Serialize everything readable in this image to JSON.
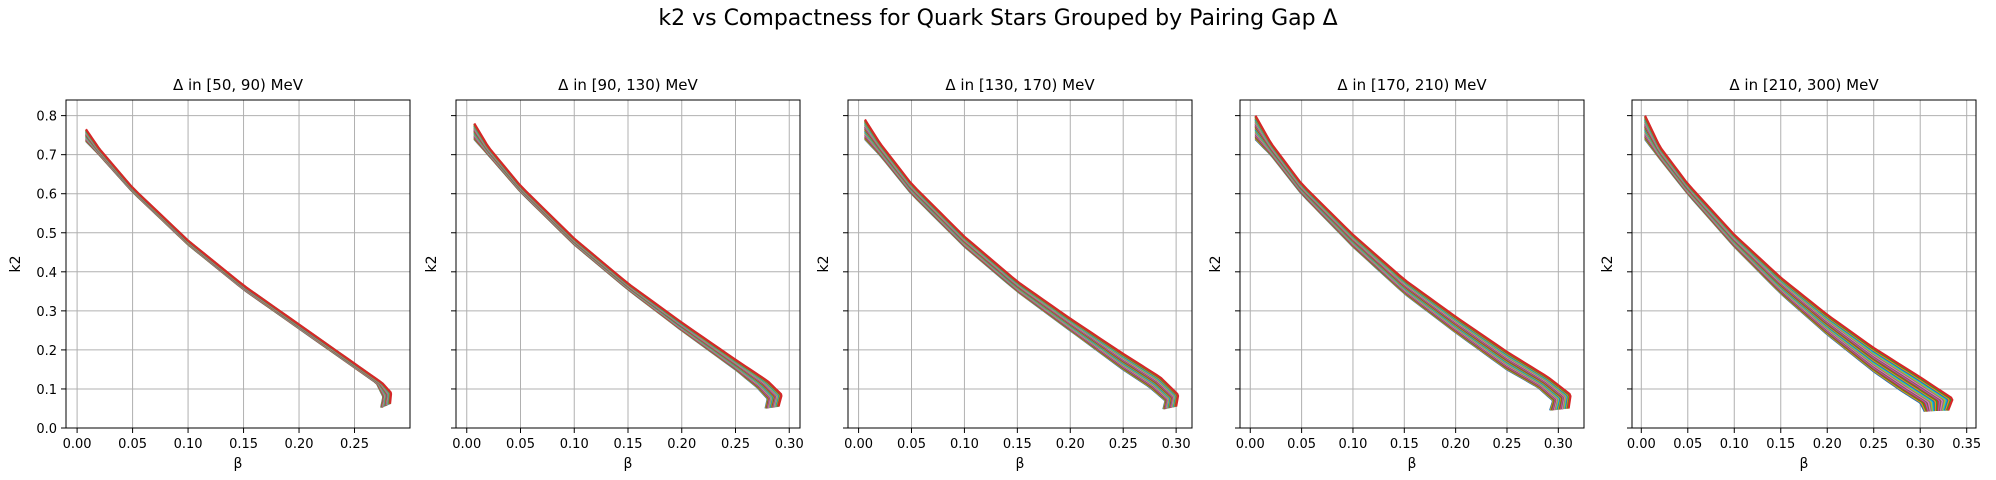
{
  "figure": {
    "title": "k2 vs Compactness for Quark Stars Grouped by Pairing Gap Δ"
  },
  "chart_data": [
    {
      "type": "line",
      "title": "Δ in [50, 90) MeV",
      "xlabel": "β",
      "ylabel": "k2",
      "xlim": [
        -0.01,
        0.3
      ],
      "ylim": [
        0.0,
        0.84
      ],
      "xticks": [
        0.0,
        0.05,
        0.1,
        0.15,
        0.2,
        0.25
      ],
      "xtick_labels": [
        "0.00",
        "0.05",
        "0.10",
        "0.15",
        "0.20",
        "0.25"
      ],
      "yticks": [
        0.0,
        0.1,
        0.2,
        0.3,
        0.4,
        0.5,
        0.6,
        0.7,
        0.8
      ],
      "ytick_labels": [
        "0.0",
        "0.1",
        "0.2",
        "0.3",
        "0.4",
        "0.5",
        "0.6",
        "0.7",
        "0.8"
      ],
      "grid": true,
      "band": {
        "upper": [
          [
            0.008,
            0.765
          ],
          [
            0.02,
            0.715
          ],
          [
            0.05,
            0.615
          ],
          [
            0.1,
            0.48
          ],
          [
            0.15,
            0.365
          ],
          [
            0.2,
            0.265
          ],
          [
            0.25,
            0.165
          ],
          [
            0.275,
            0.115
          ],
          [
            0.283,
            0.09
          ],
          [
            0.282,
            0.062
          ]
        ],
        "lower": [
          [
            0.008,
            0.735
          ],
          [
            0.02,
            0.7
          ],
          [
            0.05,
            0.605
          ],
          [
            0.1,
            0.47
          ],
          [
            0.15,
            0.355
          ],
          [
            0.2,
            0.255
          ],
          [
            0.25,
            0.155
          ],
          [
            0.27,
            0.115
          ],
          [
            0.276,
            0.08
          ],
          [
            0.274,
            0.052
          ]
        ]
      }
    },
    {
      "type": "line",
      "title": "Δ in [90, 130) MeV",
      "xlabel": "β",
      "ylabel": "k2",
      "xlim": [
        -0.01,
        0.31
      ],
      "ylim": [
        0.0,
        0.84
      ],
      "xticks": [
        0.0,
        0.05,
        0.1,
        0.15,
        0.2,
        0.25,
        0.3
      ],
      "xtick_labels": [
        "0.00",
        "0.05",
        "0.10",
        "0.15",
        "0.20",
        "0.25",
        "0.30"
      ],
      "yticks": [
        0.0,
        0.1,
        0.2,
        0.3,
        0.4,
        0.5,
        0.6,
        0.7,
        0.8
      ],
      "ytick_labels": [],
      "grid": true,
      "band": {
        "upper": [
          [
            0.007,
            0.78
          ],
          [
            0.02,
            0.72
          ],
          [
            0.05,
            0.62
          ],
          [
            0.1,
            0.485
          ],
          [
            0.15,
            0.37
          ],
          [
            0.2,
            0.27
          ],
          [
            0.25,
            0.175
          ],
          [
            0.28,
            0.12
          ],
          [
            0.293,
            0.085
          ],
          [
            0.29,
            0.055
          ]
        ],
        "lower": [
          [
            0.007,
            0.74
          ],
          [
            0.02,
            0.7
          ],
          [
            0.05,
            0.605
          ],
          [
            0.1,
            0.47
          ],
          [
            0.15,
            0.355
          ],
          [
            0.2,
            0.25
          ],
          [
            0.25,
            0.15
          ],
          [
            0.27,
            0.105
          ],
          [
            0.28,
            0.075
          ],
          [
            0.278,
            0.05
          ]
        ]
      }
    },
    {
      "type": "line",
      "title": "Δ in [130, 170) MeV",
      "xlabel": "β",
      "ylabel": "k2",
      "xlim": [
        -0.01,
        0.315
      ],
      "ylim": [
        0.0,
        0.84
      ],
      "xticks": [
        0.0,
        0.05,
        0.1,
        0.15,
        0.2,
        0.25,
        0.3
      ],
      "xtick_labels": [
        "0.00",
        "0.05",
        "0.10",
        "0.15",
        "0.20",
        "0.25",
        "0.30"
      ],
      "yticks": [
        0.0,
        0.1,
        0.2,
        0.3,
        0.4,
        0.5,
        0.6,
        0.7,
        0.8
      ],
      "ytick_labels": [],
      "grid": true,
      "band": {
        "upper": [
          [
            0.006,
            0.79
          ],
          [
            0.02,
            0.73
          ],
          [
            0.05,
            0.625
          ],
          [
            0.1,
            0.49
          ],
          [
            0.15,
            0.375
          ],
          [
            0.2,
            0.28
          ],
          [
            0.25,
            0.19
          ],
          [
            0.285,
            0.13
          ],
          [
            0.302,
            0.085
          ],
          [
            0.3,
            0.055
          ]
        ],
        "lower": [
          [
            0.006,
            0.74
          ],
          [
            0.02,
            0.7
          ],
          [
            0.05,
            0.6
          ],
          [
            0.1,
            0.465
          ],
          [
            0.15,
            0.35
          ],
          [
            0.2,
            0.25
          ],
          [
            0.25,
            0.15
          ],
          [
            0.275,
            0.105
          ],
          [
            0.29,
            0.07
          ],
          [
            0.288,
            0.048
          ]
        ]
      }
    },
    {
      "type": "line",
      "title": "Δ in [170, 210) MeV",
      "xlabel": "β",
      "ylabel": "k2",
      "xlim": [
        -0.01,
        0.325
      ],
      "ylim": [
        0.0,
        0.84
      ],
      "xticks": [
        0.0,
        0.05,
        0.1,
        0.15,
        0.2,
        0.25,
        0.3
      ],
      "xtick_labels": [
        "0.00",
        "0.05",
        "0.10",
        "0.15",
        "0.20",
        "0.25",
        "0.30"
      ],
      "yticks": [
        0.0,
        0.1,
        0.2,
        0.3,
        0.4,
        0.5,
        0.6,
        0.7,
        0.8
      ],
      "ytick_labels": [],
      "grid": true,
      "band": {
        "upper": [
          [
            0.005,
            0.8
          ],
          [
            0.02,
            0.73
          ],
          [
            0.05,
            0.625
          ],
          [
            0.1,
            0.495
          ],
          [
            0.15,
            0.38
          ],
          [
            0.2,
            0.285
          ],
          [
            0.25,
            0.195
          ],
          [
            0.29,
            0.13
          ],
          [
            0.312,
            0.085
          ],
          [
            0.31,
            0.05
          ]
        ],
        "lower": [
          [
            0.005,
            0.74
          ],
          [
            0.02,
            0.7
          ],
          [
            0.05,
            0.6
          ],
          [
            0.1,
            0.465
          ],
          [
            0.15,
            0.345
          ],
          [
            0.2,
            0.245
          ],
          [
            0.25,
            0.15
          ],
          [
            0.28,
            0.105
          ],
          [
            0.295,
            0.07
          ],
          [
            0.292,
            0.045
          ]
        ]
      }
    },
    {
      "type": "line",
      "title": "Δ in [210, 300) MeV",
      "xlabel": "β",
      "ylabel": "k2",
      "xlim": [
        -0.01,
        0.36
      ],
      "ylim": [
        0.0,
        0.84
      ],
      "xticks": [
        0.0,
        0.05,
        0.1,
        0.15,
        0.2,
        0.25,
        0.3,
        0.35
      ],
      "xtick_labels": [
        "0.00",
        "0.05",
        "0.10",
        "0.15",
        "0.20",
        "0.25",
        "0.30",
        "0.35"
      ],
      "yticks": [
        0.0,
        0.1,
        0.2,
        0.3,
        0.4,
        0.5,
        0.6,
        0.7,
        0.8
      ],
      "ytick_labels": [],
      "grid": true,
      "band": {
        "upper": [
          [
            0.004,
            0.8
          ],
          [
            0.02,
            0.72
          ],
          [
            0.05,
            0.625
          ],
          [
            0.1,
            0.495
          ],
          [
            0.15,
            0.385
          ],
          [
            0.2,
            0.29
          ],
          [
            0.25,
            0.205
          ],
          [
            0.3,
            0.13
          ],
          [
            0.335,
            0.075
          ],
          [
            0.33,
            0.045
          ]
        ],
        "lower": [
          [
            0.004,
            0.74
          ],
          [
            0.02,
            0.69
          ],
          [
            0.05,
            0.6
          ],
          [
            0.1,
            0.465
          ],
          [
            0.15,
            0.345
          ],
          [
            0.2,
            0.24
          ],
          [
            0.25,
            0.145
          ],
          [
            0.28,
            0.095
          ],
          [
            0.3,
            0.065
          ],
          [
            0.305,
            0.042
          ]
        ]
      }
    }
  ],
  "palette": [
    "#1f77b4",
    "#ff7f0e",
    "#2ca02c",
    "#d62728",
    "#9467bd",
    "#8c564b",
    "#e377c2",
    "#7f7f7f",
    "#bcbd22",
    "#17becf"
  ],
  "grid_color": "#b0b0b0"
}
